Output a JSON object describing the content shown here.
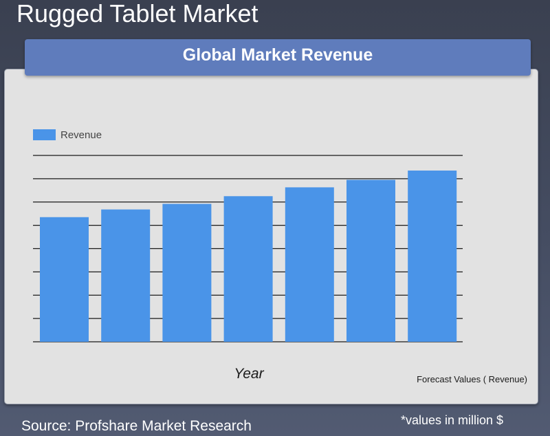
{
  "page": {
    "title": "Rugged Tablet Market",
    "source": "Source: Profshare Market Research",
    "units_note": "*values in million $"
  },
  "chart_data": {
    "type": "bar",
    "title": "Global Market Revenue",
    "xlabel": "Year",
    "ylabel": "",
    "footnote": "Forecast Values ( Revenue)",
    "legend": {
      "position": "top-left",
      "entries": [
        "Revenue"
      ]
    },
    "grid": true,
    "ylim": [
      0,
      8
    ],
    "gridline_count": 8,
    "categories": [
      "",
      "",
      "",
      "",
      "",
      "",
      ""
    ],
    "series": [
      {
        "name": "Revenue",
        "color": "#4a94e8",
        "values": [
          5.35,
          5.68,
          5.92,
          6.25,
          6.63,
          6.95,
          7.35
        ]
      }
    ],
    "colors": {
      "bar": "#4a94e8",
      "gridline": "#1a1a1a"
    }
  }
}
